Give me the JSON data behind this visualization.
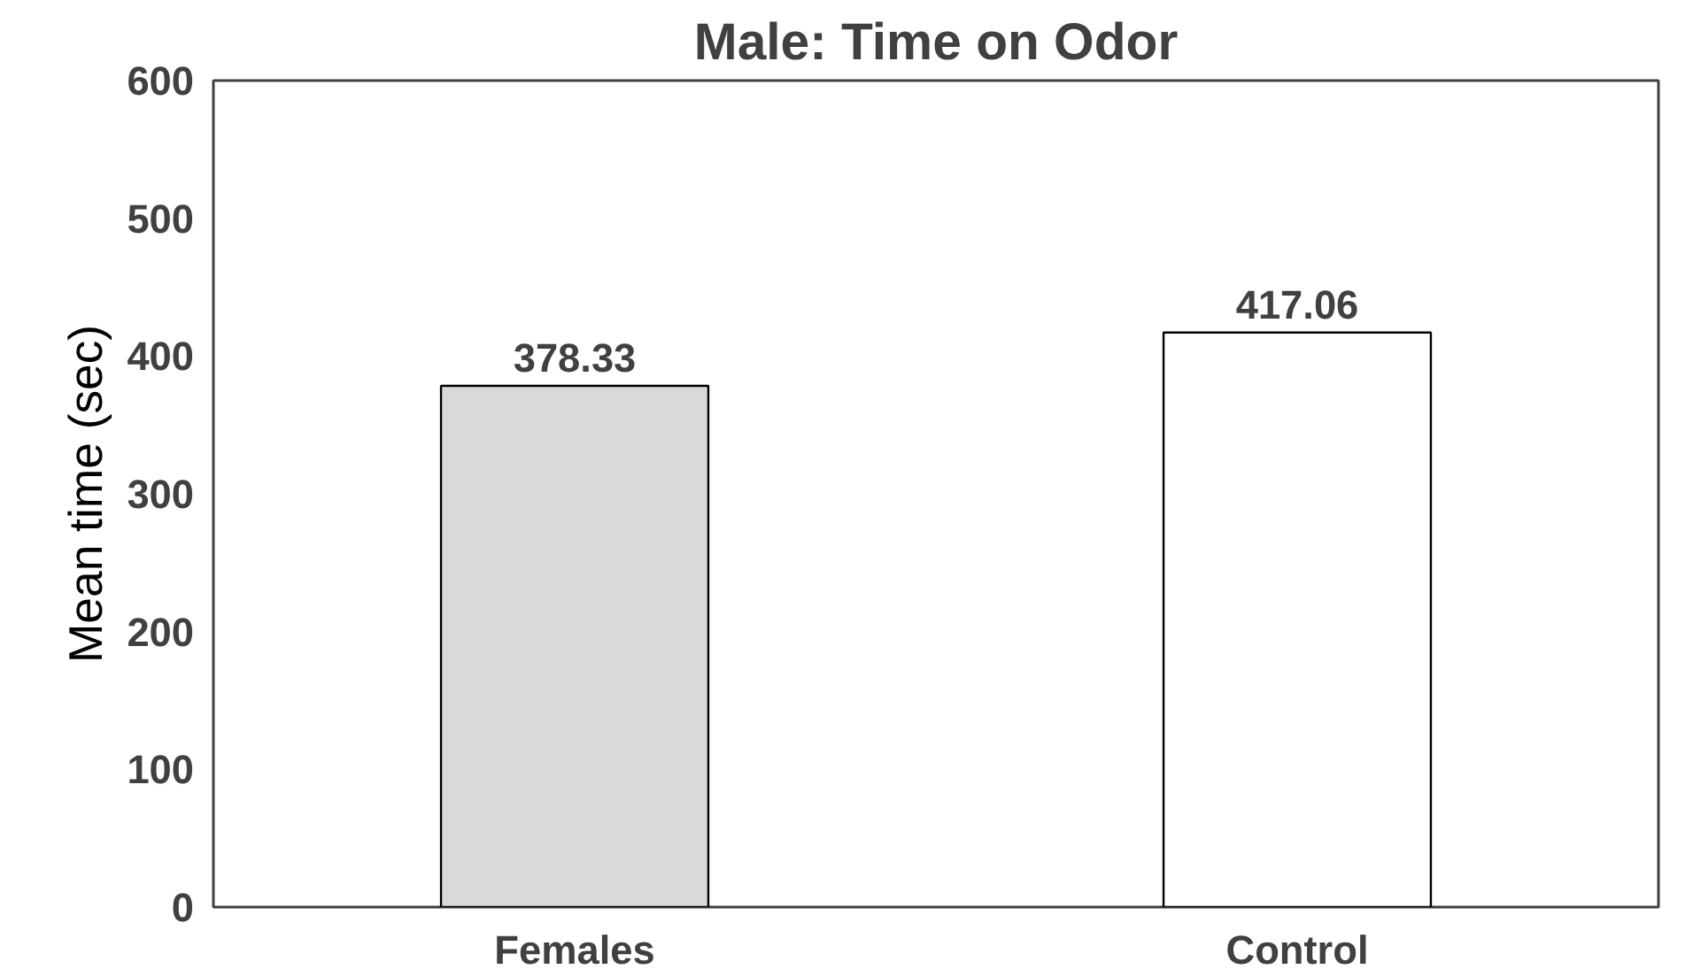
{
  "chart_data": {
    "type": "bar",
    "title": "Male: Time on Odor",
    "ylabel": "Mean time (sec)",
    "categories": [
      "Females",
      "Control"
    ],
    "values": [
      378.33,
      417.06
    ],
    "colors": [
      "#d9d9d9",
      "#ffffff"
    ],
    "ylim": [
      0,
      600
    ],
    "yticks": [
      0,
      100,
      200,
      300,
      400,
      500,
      600
    ],
    "data_labels": true,
    "grid": false
  }
}
